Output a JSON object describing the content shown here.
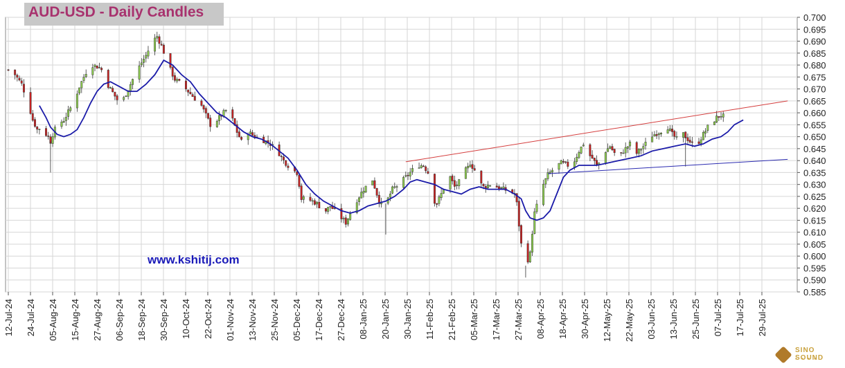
{
  "chart_data": {
    "type": "candlestick",
    "title": "AUD-USD - Daily Candles",
    "watermark": "www.kshitij.com",
    "y_axis": {
      "side": "right",
      "min": 0.585,
      "max": 0.7,
      "ticks": [
        "0.700",
        "0.695",
        "0.690",
        "0.685",
        "0.680",
        "0.675",
        "0.670",
        "0.665",
        "0.660",
        "0.655",
        "0.650",
        "0.645",
        "0.640",
        "0.635",
        "0.630",
        "0.625",
        "0.620",
        "0.615",
        "0.610",
        "0.605",
        "0.600",
        "0.595",
        "0.590",
        "0.585"
      ]
    },
    "x_axis": {
      "ticks": [
        "12-Jul-24",
        "24-Jul-24",
        "05-Aug-24",
        "15-Aug-24",
        "27-Aug-24",
        "06-Sep-24",
        "18-Sep-24",
        "30-Sep-24",
        "10-Oct-24",
        "22-Oct-24",
        "01-Nov-24",
        "13-Nov-24",
        "25-Nov-24",
        "05-Dec-24",
        "17-Dec-24",
        "27-Dec-24",
        "08-Jan-25",
        "20-Jan-25",
        "30-Jan-25",
        "11-Feb-25",
        "21-Feb-25",
        "05-Mar-25",
        "17-Mar-25",
        "27-Mar-25",
        "08-Apr-25",
        "18-Apr-25",
        "30-Apr-25",
        "12-May-25",
        "22-May-25",
        "03-Jun-25",
        "13-Jun-25",
        "25-Jun-25",
        "07-Jul-25",
        "17-Jul-25",
        "29-Jul-25"
      ]
    },
    "grid": true,
    "colors": {
      "bullish": "#8fd14f",
      "bearish": "#cc2222",
      "moving_average": "#1a1aa8",
      "resistance_trendline": "#d43c3c",
      "support_trendline": "#2a2ab0",
      "title": "#a8326e"
    },
    "close_path": [
      [
        0,
        0.678
      ],
      [
        3,
        0.676
      ],
      [
        6,
        0.672
      ],
      [
        9,
        0.664
      ],
      [
        11,
        0.657
      ],
      [
        13,
        0.653
      ],
      [
        15,
        0.654
      ],
      [
        16,
        0.652
      ],
      [
        18,
        0.65
      ],
      [
        19,
        0.648
      ],
      [
        20,
        0.651
      ],
      [
        22,
        0.655
      ],
      [
        25,
        0.657
      ],
      [
        28,
        0.662
      ],
      [
        30,
        0.666
      ],
      [
        32,
        0.671
      ],
      [
        35,
        0.677
      ],
      [
        38,
        0.68
      ],
      [
        41,
        0.679
      ],
      [
        43,
        0.677
      ],
      [
        44,
        0.673
      ],
      [
        46,
        0.67
      ],
      [
        48,
        0.667
      ],
      [
        50,
        0.664
      ],
      [
        52,
        0.666
      ],
      [
        54,
        0.67
      ],
      [
        57,
        0.676
      ],
      [
        60,
        0.681
      ],
      [
        62,
        0.684
      ],
      [
        64,
        0.688
      ],
      [
        66,
        0.691
      ],
      [
        67,
        0.692
      ],
      [
        69,
        0.688
      ],
      [
        71,
        0.683
      ],
      [
        73,
        0.678
      ],
      [
        75,
        0.674
      ],
      [
        78,
        0.672
      ],
      [
        81,
        0.669
      ],
      [
        84,
        0.666
      ],
      [
        87,
        0.663
      ],
      [
        89,
        0.659
      ],
      [
        91,
        0.655
      ],
      [
        94,
        0.657
      ],
      [
        96,
        0.659
      ],
      [
        98,
        0.661
      ],
      [
        100,
        0.662
      ],
      [
        101,
        0.657
      ],
      [
        103,
        0.652
      ],
      [
        105,
        0.648
      ],
      [
        108,
        0.652
      ],
      [
        111,
        0.65
      ],
      [
        114,
        0.649
      ],
      [
        116,
        0.648
      ],
      [
        118,
        0.647
      ],
      [
        120,
        0.645
      ],
      [
        122,
        0.643
      ],
      [
        124,
        0.64
      ],
      [
        126,
        0.638
      ],
      [
        128,
        0.636
      ],
      [
        130,
        0.635
      ],
      [
        131,
        0.63
      ],
      [
        132,
        0.624
      ],
      [
        134,
        0.624
      ],
      [
        137,
        0.623
      ],
      [
        139,
        0.622
      ],
      [
        141,
        0.62
      ],
      [
        143,
        0.619
      ],
      [
        145,
        0.621
      ],
      [
        148,
        0.618
      ],
      [
        150,
        0.616
      ],
      [
        152,
        0.614
      ],
      [
        154,
        0.618
      ],
      [
        156,
        0.622
      ],
      [
        158,
        0.625
      ],
      [
        160,
        0.628
      ],
      [
        162,
        0.63
      ],
      [
        164,
        0.632
      ],
      [
        165,
        0.629
      ],
      [
        166,
        0.626
      ],
      [
        167,
        0.623
      ],
      [
        169,
        0.62
      ],
      [
        171,
        0.624
      ],
      [
        173,
        0.628
      ],
      [
        176,
        0.63
      ],
      [
        179,
        0.633
      ],
      [
        182,
        0.636
      ],
      [
        185,
        0.638
      ],
      [
        187,
        0.638
      ],
      [
        189,
        0.635
      ],
      [
        190,
        0.63
      ],
      [
        191,
        0.624
      ],
      [
        193,
        0.622
      ],
      [
        195,
        0.626
      ],
      [
        197,
        0.631
      ],
      [
        199,
        0.633
      ],
      [
        201,
        0.629
      ],
      [
        203,
        0.631
      ],
      [
        205,
        0.635
      ],
      [
        207,
        0.637
      ],
      [
        208,
        0.639
      ],
      [
        210,
        0.636
      ],
      [
        212,
        0.631
      ],
      [
        214,
        0.629
      ],
      [
        217,
        0.63
      ],
      [
        220,
        0.629
      ],
      [
        223,
        0.628
      ],
      [
        226,
        0.627
      ],
      [
        228,
        0.626
      ],
      [
        229,
        0.622
      ],
      [
        230,
        0.613
      ],
      [
        231,
        0.605
      ],
      [
        232,
        0.6
      ],
      [
        233,
        0.596
      ],
      [
        235,
        0.601
      ],
      [
        236,
        0.61
      ],
      [
        237,
        0.618
      ],
      [
        239,
        0.624
      ],
      [
        241,
        0.63
      ],
      [
        243,
        0.634
      ],
      [
        246,
        0.637
      ],
      [
        249,
        0.639
      ],
      [
        252,
        0.638
      ],
      [
        255,
        0.64
      ],
      [
        257,
        0.644
      ],
      [
        259,
        0.647
      ],
      [
        261,
        0.643
      ],
      [
        263,
        0.641
      ],
      [
        265,
        0.638
      ],
      [
        267,
        0.64
      ],
      [
        269,
        0.644
      ],
      [
        271,
        0.646
      ],
      [
        273,
        0.643
      ],
      [
        275,
        0.641
      ],
      [
        277,
        0.644
      ],
      [
        279,
        0.646
      ],
      [
        281,
        0.648
      ],
      [
        283,
        0.643
      ],
      [
        285,
        0.645
      ],
      [
        287,
        0.647
      ],
      [
        289,
        0.65
      ],
      [
        291,
        0.651
      ],
      [
        293,
        0.652
      ],
      [
        295,
        0.653
      ],
      [
        297,
        0.654
      ],
      [
        299,
        0.651
      ],
      [
        301,
        0.649
      ],
      [
        303,
        0.652
      ],
      [
        305,
        0.65
      ],
      [
        307,
        0.648
      ],
      [
        309,
        0.646
      ],
      [
        311,
        0.648
      ],
      [
        313,
        0.651
      ],
      [
        315,
        0.654
      ],
      [
        317,
        0.656
      ],
      [
        319,
        0.658
      ],
      [
        321,
        0.659
      ],
      [
        323,
        0.658
      ],
      [
        324,
        0.658
      ]
    ],
    "moving_average_path": [
      [
        14,
        0.663
      ],
      [
        17,
        0.658
      ],
      [
        19,
        0.654
      ],
      [
        22,
        0.651
      ],
      [
        25,
        0.65
      ],
      [
        28,
        0.651
      ],
      [
        31,
        0.653
      ],
      [
        34,
        0.658
      ],
      [
        37,
        0.664
      ],
      [
        40,
        0.669
      ],
      [
        43,
        0.672
      ],
      [
        46,
        0.673
      ],
      [
        50,
        0.671
      ],
      [
        54,
        0.669
      ],
      [
        58,
        0.669
      ],
      [
        62,
        0.672
      ],
      [
        66,
        0.676
      ],
      [
        70,
        0.682
      ],
      [
        74,
        0.68
      ],
      [
        78,
        0.676
      ],
      [
        82,
        0.673
      ],
      [
        86,
        0.668
      ],
      [
        90,
        0.664
      ],
      [
        94,
        0.66
      ],
      [
        98,
        0.658
      ],
      [
        102,
        0.655
      ],
      [
        106,
        0.652
      ],
      [
        110,
        0.65
      ],
      [
        114,
        0.649
      ],
      [
        118,
        0.647
      ],
      [
        122,
        0.644
      ],
      [
        126,
        0.641
      ],
      [
        130,
        0.636
      ],
      [
        134,
        0.63
      ],
      [
        138,
        0.626
      ],
      [
        142,
        0.623
      ],
      [
        146,
        0.621
      ],
      [
        150,
        0.619
      ],
      [
        154,
        0.618
      ],
      [
        158,
        0.619
      ],
      [
        162,
        0.621
      ],
      [
        166,
        0.622
      ],
      [
        170,
        0.623
      ],
      [
        174,
        0.625
      ],
      [
        178,
        0.628
      ],
      [
        181,
        0.631
      ],
      [
        184,
        0.632
      ],
      [
        188,
        0.631
      ],
      [
        192,
        0.63
      ],
      [
        196,
        0.628
      ],
      [
        200,
        0.627
      ],
      [
        204,
        0.626
      ],
      [
        208,
        0.628
      ],
      [
        212,
        0.629
      ],
      [
        216,
        0.628
      ],
      [
        220,
        0.628
      ],
      [
        224,
        0.628
      ],
      [
        228,
        0.626
      ],
      [
        231,
        0.624
      ],
      [
        233,
        0.619
      ],
      [
        235,
        0.616
      ],
      [
        238,
        0.615
      ],
      [
        241,
        0.616
      ],
      [
        244,
        0.619
      ],
      [
        247,
        0.626
      ],
      [
        250,
        0.633
      ],
      [
        253,
        0.636
      ],
      [
        257,
        0.638
      ],
      [
        261,
        0.638
      ],
      [
        265,
        0.638
      ],
      [
        270,
        0.639
      ],
      [
        275,
        0.64
      ],
      [
        280,
        0.641
      ],
      [
        285,
        0.642
      ],
      [
        290,
        0.644
      ],
      [
        295,
        0.645
      ],
      [
        300,
        0.646
      ],
      [
        305,
        0.647
      ],
      [
        309,
        0.646
      ],
      [
        313,
        0.647
      ],
      [
        317,
        0.649
      ],
      [
        321,
        0.65
      ],
      [
        324,
        0.652
      ],
      [
        327,
        0.655
      ],
      [
        331,
        0.657
      ]
    ],
    "trendlines": [
      {
        "name": "resistance",
        "from": [
          179,
          0.6395
        ],
        "to": [
          351,
          0.665
        ]
      },
      {
        "name": "support",
        "from": [
          243,
          0.6345
        ],
        "to": [
          351,
          0.6405
        ]
      }
    ]
  }
}
